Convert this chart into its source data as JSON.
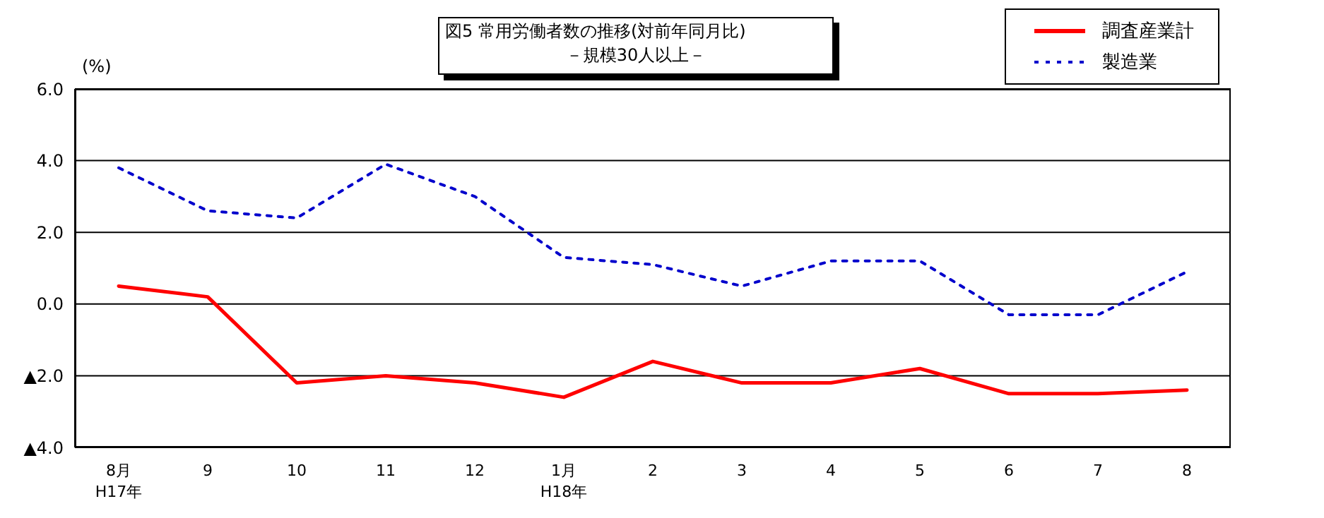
{
  "chart_data": {
    "type": "line",
    "title": "図5  常用労働者数の推移(対前年同月比)",
    "subtitle": "－規模30人以上－",
    "ylabel": "(%)",
    "categories": [
      "8月\nH17年",
      "9",
      "10",
      "11",
      "12",
      "1月\nH18年",
      "2",
      "3",
      "4",
      "5",
      "6",
      "7",
      "8"
    ],
    "series": [
      {
        "name": "調査産業計",
        "color": "#ff0000",
        "line_style": "solid",
        "values": [
          0.5,
          0.2,
          -2.2,
          -2.0,
          -2.2,
          -2.6,
          -1.6,
          -2.2,
          -2.2,
          -1.8,
          -2.5,
          -2.5,
          -2.4
        ]
      },
      {
        "name": "製造業",
        "color": "#0000cc",
        "line_style": "dotted",
        "values": [
          3.8,
          2.6,
          2.4,
          3.9,
          3.0,
          1.3,
          1.1,
          0.5,
          1.2,
          1.2,
          -0.3,
          -0.3,
          0.9
        ]
      }
    ],
    "ylim": [
      -4,
      6
    ],
    "yticks": [
      {
        "value": -4,
        "label": "▲4.0"
      },
      {
        "value": -2,
        "label": "▲2.0"
      },
      {
        "value": 0,
        "label": "0.0"
      },
      {
        "value": 2,
        "label": "2.0"
      },
      {
        "value": 4,
        "label": "4.0"
      },
      {
        "value": 6,
        "label": "6.0"
      }
    ],
    "grid": "y",
    "legend": "top right",
    "marker": "none"
  }
}
